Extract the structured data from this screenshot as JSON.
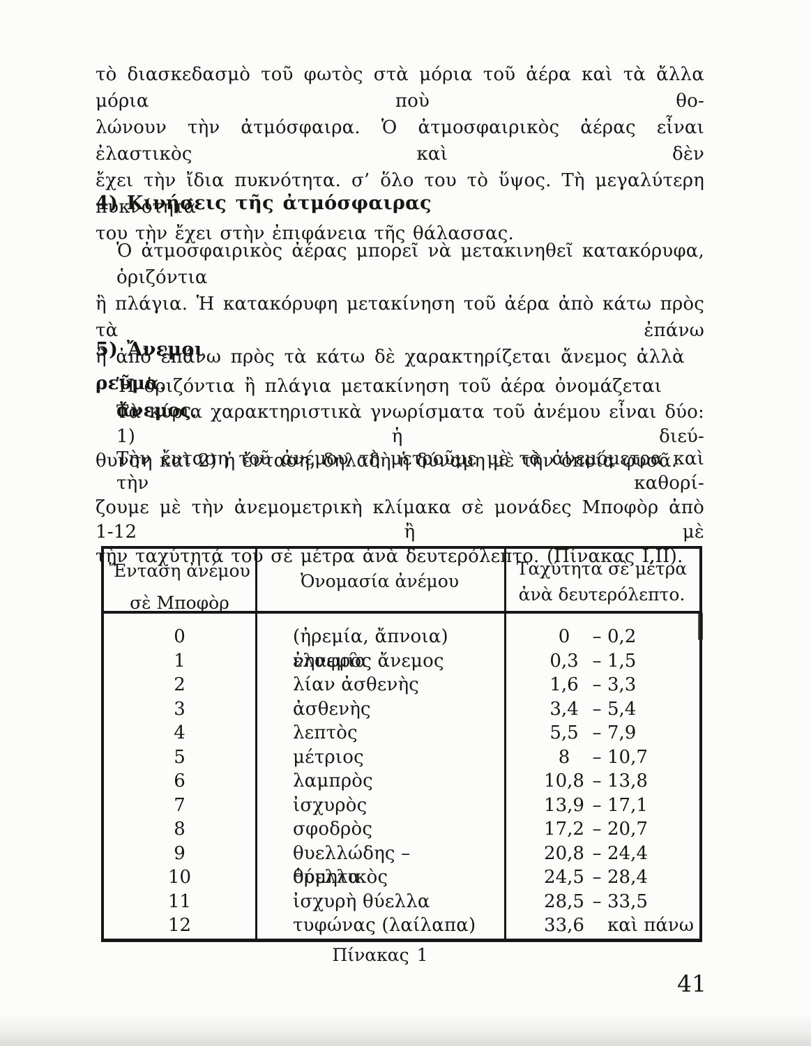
{
  "page": {
    "number": "41",
    "caption": "Πίνακας 1"
  },
  "intro": {
    "lines": [
      "τὸ διασκεδασμὸ τοῦ φωτὸς στὰ μόρια τοῦ ἀέρα καὶ τὰ ἄλλα μόρια ποὺ θο-",
      "λώνουν τὴν ἀτμόσφαιρα. Ὁ ἀτμοσφαιρικὸς ἀέρας εἶναι ἐλαστικὸς καὶ δὲν",
      "ἔχει τὴν ἴδια πυκνότητα. σ’ ὅλο του τὸ ὕψος. Τὴ μεγαλύτερη πυκνότητά",
      "του τὴν ἔχει στὴν ἐπιφάνεια τῆς θάλασσας."
    ]
  },
  "section4": {
    "heading": "4) Κινήσεις τῆς ἀτμόσφαιρας",
    "lines": [
      "Ὁ ἀτμοσφαιρικὸς ἀέρας μπορεῖ νὰ μετακινηθεῖ κατακόρυφα, ὁριζόντια",
      "ἢ πλάγια. Ἡ κατακόρυφη μετακίνηση τοῦ ἀέρα ἀπὸ κάτω πρὸς τὰ ἐπάνω"
    ],
    "last_line": {
      "pre": "ἢ ἀπὸ ἐπάνω πρὸς τὰ κάτω δὲ χαρακτηρίζεται ἄνεμος ἀλλὰ ",
      "bold": "ρεῦμα",
      "post": "."
    }
  },
  "section5": {
    "heading": "5) Ἄνεμοι",
    "para1": {
      "pre": "Ἡ ὁριζόντια ἢ πλάγια μετακίνηση τοῦ ἀέρα ὀνομάζεται ",
      "bold": "ἄνεμος",
      "post": "."
    },
    "para2_lines": [
      "Τὰ κύρια χαρακτηριστικὰ γνωρίσματα τοῦ ἀνέμου εἶναι δύο: 1) ἡ διεύ-",
      "θυνση καὶ 2) ἡ ἔνταση, δηλαδὴ ἡ δύναμη μὲ τὴν ὁποία φυσᾶ."
    ],
    "para3_lines": [
      "Τὴν ἔνταση τοῦ ἀνέμου τὴ μετροῦμε μὲ τὰ ἀνεμόμετρα καὶ τὴν καθορί-",
      "ζουμε μὲ τὴν ἀνεμομετρικὴ κλίμακα σὲ μονάδες Μποφὸρ ἀπὸ 1-12 ἢ μὲ",
      "τὴν ταχύτητά του σὲ μέτρα ἀνὰ δευτερόλεπτο. (Πίνακας Ι,ΙΙ)."
    ]
  },
  "table": {
    "headers": {
      "col1": [
        "Ἔνταση ἀνέμου",
        "σὲ Μποφὸρ"
      ],
      "col2": "Ὀνομασία ἀνέμου",
      "col3": [
        "Ταχύτητα σὲ μέτρα",
        "ἀνὰ δευτερόλεπτο."
      ]
    },
    "rows": [
      {
        "bf": "0",
        "name": "(ἠρεμία, ἄπνοια) νηνεμία",
        "from": "0",
        "dash": "–",
        "to": "0,2"
      },
      {
        "bf": "1",
        "name": "ἐλαφρὸς ἄνεμος",
        "from": "0,3",
        "dash": "–",
        "to": "1,5"
      },
      {
        "bf": "2",
        "name": "λίαν ἀσθενὴς",
        "from": "1,6",
        "dash": "–",
        "to": "3,3"
      },
      {
        "bf": "3",
        "name": "ἀσθενὴς",
        "from": "3,4",
        "dash": "–",
        "to": "5,4"
      },
      {
        "bf": "4",
        "name": "λεπτὸς",
        "from": "5,5",
        "dash": "–",
        "to": "7,9"
      },
      {
        "bf": "5",
        "name": "μέτριος",
        "from": "8",
        "dash": "–",
        "to": "10,7"
      },
      {
        "bf": "6",
        "name": "λαμπρὸς",
        "from": "10,8",
        "dash": "–",
        "to": "13,8"
      },
      {
        "bf": "7",
        "name": "ἰσχυρὸς",
        "from": "13,9",
        "dash": "–",
        "to": "17,1"
      },
      {
        "bf": "8",
        "name": "σφοδρὸς",
        "from": "17,2",
        "dash": "–",
        "to": "20,7"
      },
      {
        "bf": "9",
        "name": "θυελλώδης – ὁρμητικὸς",
        "from": "20,8",
        "dash": "–",
        "to": "24,4"
      },
      {
        "bf": "10",
        "name": "θύελλα",
        "from": "24,5",
        "dash": "–",
        "to": "28,4"
      },
      {
        "bf": "11",
        "name": "ἰσχυρὴ θύελλα",
        "from": "28,5",
        "dash": "–",
        "to": "33,5"
      },
      {
        "bf": "12",
        "name": "τυφώνας (λαίλαπα)",
        "from": "33,6",
        "dash": "",
        "to": "καὶ πάνω"
      }
    ]
  }
}
